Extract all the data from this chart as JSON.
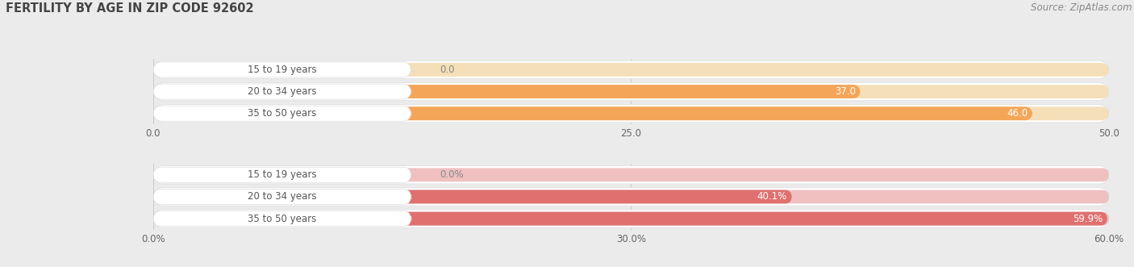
{
  "title": "FERTILITY BY AGE IN ZIP CODE 92602",
  "source": "Source: ZipAtlas.com",
  "top_section": {
    "categories": [
      "15 to 19 years",
      "20 to 34 years",
      "35 to 50 years"
    ],
    "values": [
      0.0,
      37.0,
      46.0
    ],
    "xlim": [
      0.0,
      50.0
    ],
    "xticks": [
      0.0,
      25.0,
      50.0
    ],
    "xtick_labels": [
      "0.0",
      "25.0",
      "50.0"
    ],
    "bar_color": "#F5A558",
    "bar_bg_color": "#EDEDED",
    "pill_bg": "#FFFFFF",
    "inner_bar_color": "#F5A558",
    "inner_bar_bg": "#F5DFB8"
  },
  "bottom_section": {
    "categories": [
      "15 to 19 years",
      "20 to 34 years",
      "35 to 50 years"
    ],
    "values": [
      0.0,
      40.1,
      59.9
    ],
    "xlim": [
      0.0,
      60.0
    ],
    "xticks": [
      0.0,
      30.0,
      60.0
    ],
    "xtick_labels": [
      "0.0%",
      "30.0%",
      "60.0%"
    ],
    "bar_color": "#E07070",
    "bar_bg_color": "#EDEDED",
    "pill_bg": "#FFFFFF",
    "inner_bar_color": "#E07070",
    "inner_bar_bg": "#F0C0C0"
  },
  "background_color": "#EBEBEB",
  "row_bg_color": "#FFFFFF",
  "bar_height": 0.7,
  "label_fontsize": 8.5,
  "value_fontsize": 8.5,
  "title_fontsize": 10.5,
  "source_fontsize": 8.5
}
